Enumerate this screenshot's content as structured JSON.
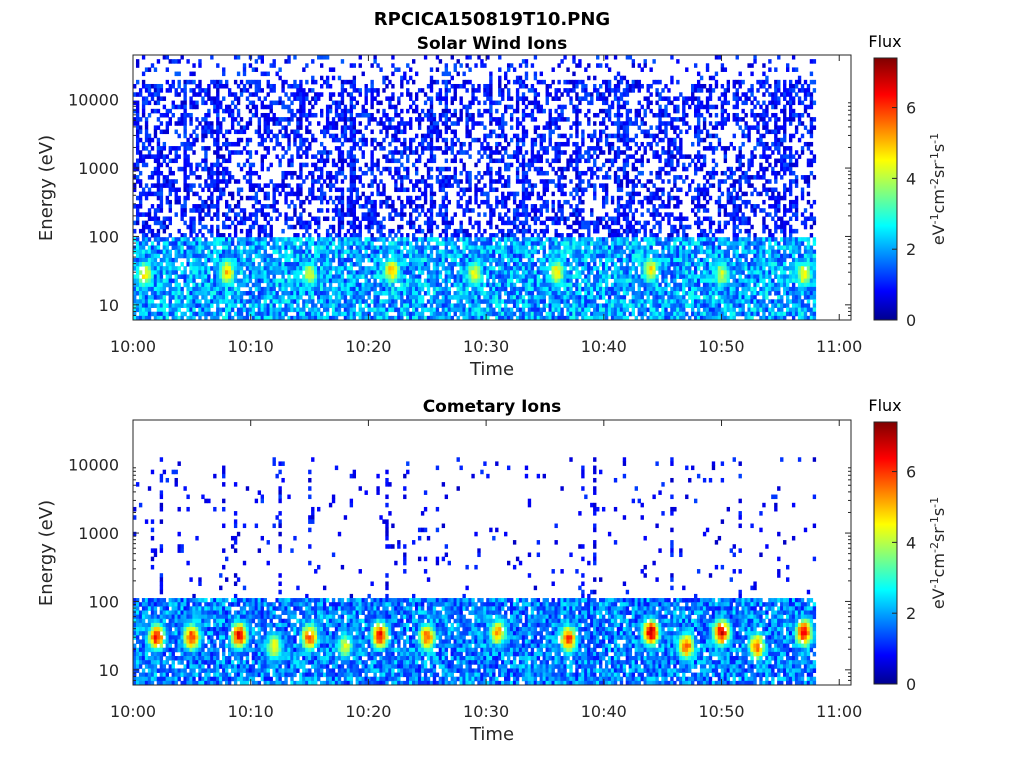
{
  "figure_title": "RPCICA150819T10.PNG",
  "chart_data": [
    {
      "type": "heatmap",
      "title": "Solar Wind Ions",
      "xlabel": "Time",
      "ylabel": "Energy (eV)",
      "y_scale": "log",
      "ylim": [
        6,
        45000
      ],
      "xlim": [
        "10:00",
        "11:01"
      ],
      "x_ticks": [
        "10:00",
        "10:10",
        "10:20",
        "10:30",
        "10:40",
        "10:50",
        "11:00"
      ],
      "y_ticks": [
        "10",
        "100",
        "1000",
        "10000"
      ],
      "data_extent_x": [
        "10:00",
        "10:58"
      ],
      "colorbar": {
        "title": "Flux",
        "label": "eV-1cm-2sr-1s-1",
        "range": [
          0,
          7.4
        ],
        "ticks": [
          "0",
          "2",
          "4",
          "6"
        ],
        "colormap": "jet"
      },
      "bursts": [
        {
          "time": "10:01",
          "energy": 28,
          "flux": 4.4
        },
        {
          "time": "10:08",
          "energy": 30,
          "flux": 4.6
        },
        {
          "time": "10:15",
          "energy": 28,
          "flux": 4.0
        },
        {
          "time": "10:22",
          "energy": 32,
          "flux": 4.8
        },
        {
          "time": "10:29",
          "energy": 28,
          "flux": 4.2
        },
        {
          "time": "10:36",
          "energy": 30,
          "flux": 4.4
        },
        {
          "time": "10:44",
          "energy": 32,
          "flux": 4.6
        },
        {
          "time": "10:50",
          "energy": 28,
          "flux": 4.0
        },
        {
          "time": "10:57",
          "energy": 28,
          "flux": 4.4
        }
      ]
    },
    {
      "type": "heatmap",
      "title": "Cometary Ions",
      "xlabel": "Time",
      "ylabel": "Energy (eV)",
      "y_scale": "log",
      "ylim": [
        6,
        45000
      ],
      "xlim": [
        "10:00",
        "11:01"
      ],
      "x_ticks": [
        "10:00",
        "10:10",
        "10:20",
        "10:30",
        "10:40",
        "10:50",
        "11:00"
      ],
      "y_ticks": [
        "10",
        "100",
        "1000",
        "10000"
      ],
      "data_extent_x": [
        "10:00",
        "10:58"
      ],
      "colorbar": {
        "title": "Flux",
        "label": "eV-1cm-2sr-1s-1",
        "range": [
          0,
          7.4
        ],
        "ticks": [
          "0",
          "2",
          "4",
          "6"
        ],
        "colormap": "jet"
      },
      "bursts": [
        {
          "time": "10:02",
          "energy": 30,
          "flux": 6.0
        },
        {
          "time": "10:05",
          "energy": 30,
          "flux": 5.8
        },
        {
          "time": "10:09",
          "energy": 32,
          "flux": 6.2
        },
        {
          "time": "10:12",
          "energy": 22,
          "flux": 4.2
        },
        {
          "time": "10:15",
          "energy": 30,
          "flux": 5.6
        },
        {
          "time": "10:18",
          "energy": 22,
          "flux": 4.0
        },
        {
          "time": "10:21",
          "energy": 32,
          "flux": 6.2
        },
        {
          "time": "10:25",
          "energy": 30,
          "flux": 5.6
        },
        {
          "time": "10:31",
          "energy": 35,
          "flux": 5.0
        },
        {
          "time": "10:37",
          "energy": 28,
          "flux": 5.8
        },
        {
          "time": "10:44",
          "energy": 35,
          "flux": 6.6
        },
        {
          "time": "10:47",
          "energy": 22,
          "flux": 5.6
        },
        {
          "time": "10:50",
          "energy": 35,
          "flux": 6.4
        },
        {
          "time": "10:53",
          "energy": 22,
          "flux": 5.4
        },
        {
          "time": "10:57",
          "energy": 35,
          "flux": 6.2
        }
      ]
    }
  ]
}
